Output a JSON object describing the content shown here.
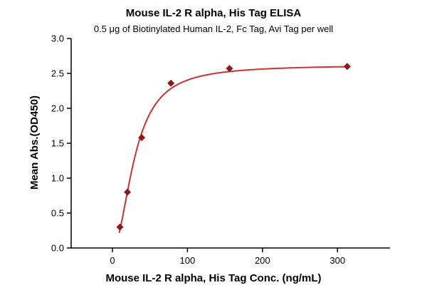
{
  "chart_data": {
    "type": "line",
    "title": "Mouse IL-2 R alpha, His Tag ELISA",
    "subtitle": "0.5 μg of Biotinylated Human IL-2, Fc Tag, Avi Tag per well",
    "xlabel": "Mouse IL-2 R alpha, His Tag Conc. (ng/mL)",
    "ylabel": "Mean Abs.(OD450)",
    "xlim": [
      -55,
      370
    ],
    "ylim": [
      0,
      3
    ],
    "xticks": [
      0,
      100,
      200,
      300
    ],
    "yticks": [
      0,
      0.5,
      1,
      1.5,
      2,
      2.5,
      3
    ],
    "ytick_decimals": 1,
    "marker": "diamond",
    "grid": false,
    "points": {
      "x": [
        10,
        20,
        39,
        78,
        156,
        313
      ],
      "y": [
        0.3,
        0.8,
        1.58,
        2.36,
        2.57,
        2.6
      ]
    },
    "curve_fit": {
      "model": "4PL",
      "bottom": 0,
      "top": 2.62,
      "ec50": 30,
      "hill": 2,
      "x_start": 9,
      "x_end": 313
    },
    "colors": {
      "point": "#8b1a1a",
      "curve": "#c63531",
      "axis": "#000000",
      "text": "#000000"
    }
  }
}
